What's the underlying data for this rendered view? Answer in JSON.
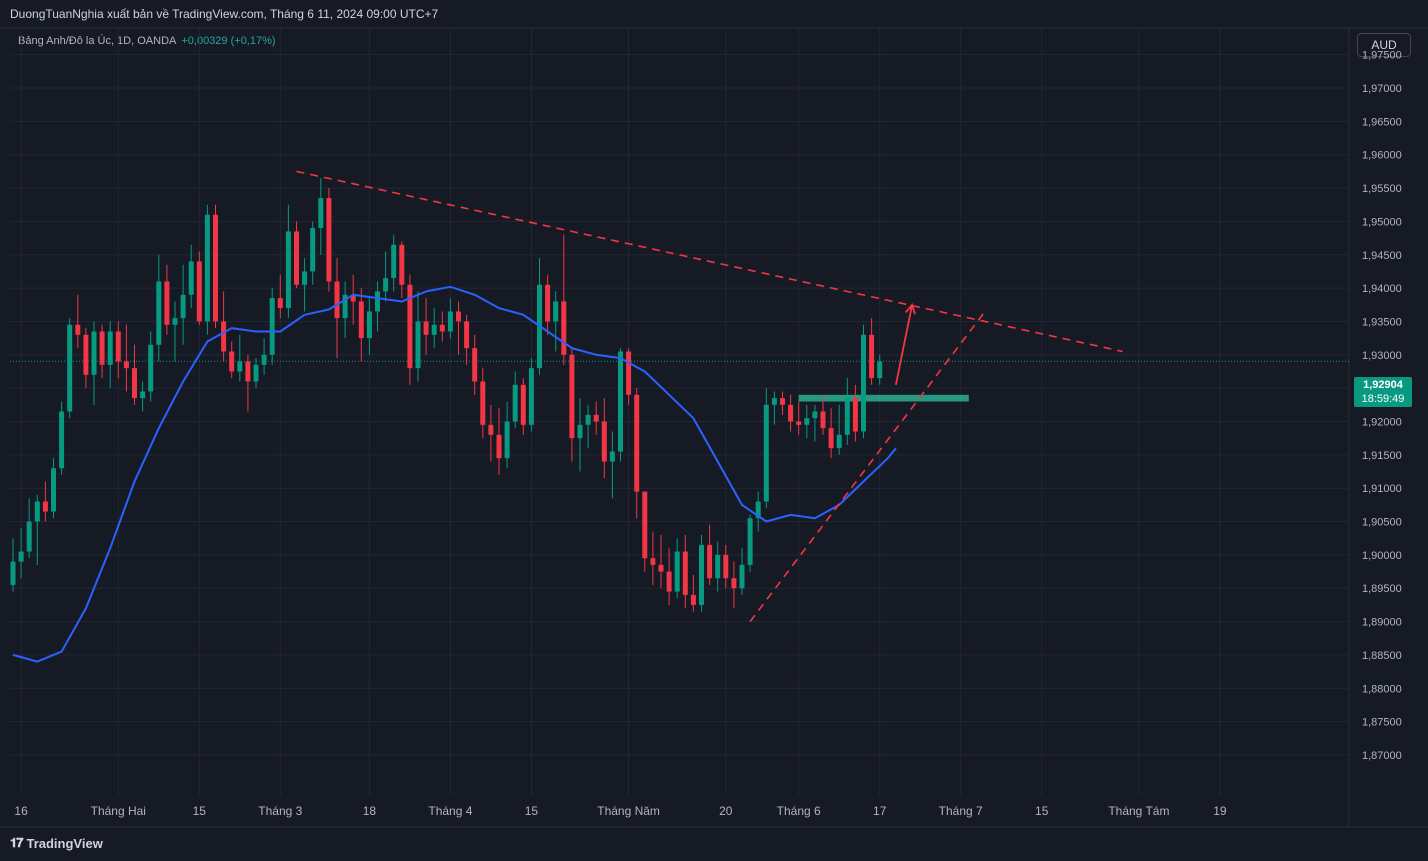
{
  "header": {
    "publisher_line": "DuongTuanNghia xuất bản về TradingView.com, Tháng 6 11, 2024 09:00 UTC+7",
    "symbol_line": "Bảng Anh/Đô la Úc, 1D, OANDA",
    "change": "+0,00329 (+0,17%)"
  },
  "currency_button": "AUD",
  "price_tag": {
    "price": "1,92904",
    "countdown": "18:59:49"
  },
  "footer": {
    "brand": "TradingView",
    "logo_icon": "tradingview-logo-icon"
  },
  "colors": {
    "up": "#089981",
    "down": "#f23645",
    "ma": "#2962ff",
    "trend": "#f23645",
    "zone": "#2ec4a0"
  },
  "chart_data": {
    "type": "candlestick",
    "ylim": [
      1.864,
      1.979
    ],
    "y_ticks": [
      "1,97500",
      "1,97000",
      "1,96500",
      "1,96000",
      "1,95500",
      "1,95000",
      "1,94500",
      "1,94000",
      "1,93500",
      "1,93000",
      "1,92500",
      "1,92000",
      "1,91500",
      "1,91000",
      "1,90500",
      "1,90000",
      "1,89500",
      "1,89000",
      "1,88500",
      "1,88000",
      "1,87500",
      "1,87000"
    ],
    "x_ticks": [
      {
        "label": "16",
        "bar": 1
      },
      {
        "label": "Tháng Hai",
        "bar": 13
      },
      {
        "label": "15",
        "bar": 23
      },
      {
        "label": "Tháng 3",
        "bar": 33
      },
      {
        "label": "18",
        "bar": 44
      },
      {
        "label": "Tháng 4",
        "bar": 54
      },
      {
        "label": "15",
        "bar": 64
      },
      {
        "label": "Tháng Năm",
        "bar": 76
      },
      {
        "label": "20",
        "bar": 88
      },
      {
        "label": "Tháng 6",
        "bar": 97
      },
      {
        "label": "17",
        "bar": 107
      },
      {
        "label": "Tháng 7",
        "bar": 117
      },
      {
        "label": "15",
        "bar": 127
      },
      {
        "label": "Tháng Tám",
        "bar": 139
      },
      {
        "label": "19",
        "bar": 149
      }
    ],
    "ohlc": [
      [
        1.8955,
        1.9025,
        1.8945,
        1.899
      ],
      [
        1.899,
        1.904,
        1.8965,
        1.9005
      ],
      [
        1.9005,
        1.9085,
        1.8995,
        1.905
      ],
      [
        1.905,
        1.909,
        1.8985,
        1.908
      ],
      [
        1.908,
        1.911,
        1.905,
        1.9065
      ],
      [
        1.9065,
        1.9145,
        1.9055,
        1.913
      ],
      [
        1.913,
        1.923,
        1.912,
        1.9215
      ],
      [
        1.9215,
        1.9355,
        1.9205,
        1.9345
      ],
      [
        1.9345,
        1.939,
        1.931,
        1.933
      ],
      [
        1.933,
        1.934,
        1.925,
        1.927
      ],
      [
        1.927,
        1.935,
        1.9225,
        1.9335
      ],
      [
        1.9335,
        1.9345,
        1.9265,
        1.9285
      ],
      [
        1.9285,
        1.935,
        1.925,
        1.9335
      ],
      [
        1.9335,
        1.935,
        1.9265,
        1.929
      ],
      [
        1.929,
        1.9345,
        1.9245,
        1.928
      ],
      [
        1.928,
        1.9315,
        1.9225,
        1.9235
      ],
      [
        1.9235,
        1.926,
        1.9215,
        1.9245
      ],
      [
        1.9245,
        1.9335,
        1.923,
        1.9315
      ],
      [
        1.9315,
        1.945,
        1.929,
        1.941
      ],
      [
        1.941,
        1.9435,
        1.933,
        1.9345
      ],
      [
        1.9345,
        1.938,
        1.929,
        1.9355
      ],
      [
        1.9355,
        1.9435,
        1.9315,
        1.939
      ],
      [
        1.939,
        1.9465,
        1.937,
        1.944
      ],
      [
        1.944,
        1.9455,
        1.9345,
        1.935
      ],
      [
        1.935,
        1.9525,
        1.933,
        1.951
      ],
      [
        1.951,
        1.9525,
        1.934,
        1.935
      ],
      [
        1.935,
        1.9395,
        1.929,
        1.9305
      ],
      [
        1.9305,
        1.932,
        1.9265,
        1.9275
      ],
      [
        1.9275,
        1.933,
        1.926,
        1.929
      ],
      [
        1.929,
        1.93,
        1.9215,
        1.926
      ],
      [
        1.926,
        1.9295,
        1.925,
        1.9285
      ],
      [
        1.9285,
        1.9325,
        1.927,
        1.93
      ],
      [
        1.93,
        1.94,
        1.9285,
        1.9385
      ],
      [
        1.9385,
        1.942,
        1.9355,
        1.937
      ],
      [
        1.937,
        1.9525,
        1.9355,
        1.9485
      ],
      [
        1.9485,
        1.95,
        1.94,
        1.9405
      ],
      [
        1.9405,
        1.9445,
        1.9365,
        1.9425
      ],
      [
        1.9425,
        1.95,
        1.9405,
        1.949
      ],
      [
        1.949,
        1.9565,
        1.945,
        1.9535
      ],
      [
        1.9535,
        1.955,
        1.9395,
        1.941
      ],
      [
        1.941,
        1.9445,
        1.9295,
        1.9355
      ],
      [
        1.9355,
        1.941,
        1.9325,
        1.939
      ],
      [
        1.939,
        1.942,
        1.9345,
        1.938
      ],
      [
        1.938,
        1.94,
        1.929,
        1.9325
      ],
      [
        1.9325,
        1.9385,
        1.93,
        1.9365
      ],
      [
        1.9365,
        1.941,
        1.9335,
        1.9395
      ],
      [
        1.9395,
        1.9455,
        1.938,
        1.9415
      ],
      [
        1.9415,
        1.948,
        1.9395,
        1.9465
      ],
      [
        1.9465,
        1.947,
        1.9385,
        1.9405
      ],
      [
        1.9405,
        1.942,
        1.9255,
        1.928
      ],
      [
        1.928,
        1.9395,
        1.926,
        1.935
      ],
      [
        1.935,
        1.9385,
        1.93,
        1.933
      ],
      [
        1.933,
        1.937,
        1.931,
        1.9345
      ],
      [
        1.9345,
        1.9365,
        1.932,
        1.9335
      ],
      [
        1.9335,
        1.9385,
        1.9325,
        1.9365
      ],
      [
        1.9365,
        1.938,
        1.93,
        1.935
      ],
      [
        1.935,
        1.936,
        1.9285,
        1.931
      ],
      [
        1.931,
        1.933,
        1.924,
        1.926
      ],
      [
        1.926,
        1.928,
        1.9175,
        1.9195
      ],
      [
        1.9195,
        1.9225,
        1.914,
        1.918
      ],
      [
        1.918,
        1.922,
        1.912,
        1.9145
      ],
      [
        1.9145,
        1.923,
        1.913,
        1.92
      ],
      [
        1.92,
        1.9275,
        1.919,
        1.9255
      ],
      [
        1.9255,
        1.9265,
        1.918,
        1.9195
      ],
      [
        1.9195,
        1.9295,
        1.9185,
        1.928
      ],
      [
        1.928,
        1.9445,
        1.927,
        1.9405
      ],
      [
        1.9405,
        1.942,
        1.933,
        1.935
      ],
      [
        1.935,
        1.9395,
        1.9305,
        1.938
      ],
      [
        1.938,
        1.948,
        1.9285,
        1.93
      ],
      [
        1.93,
        1.931,
        1.914,
        1.9175
      ],
      [
        1.9175,
        1.9235,
        1.9125,
        1.9195
      ],
      [
        1.9195,
        1.9225,
        1.916,
        1.921
      ],
      [
        1.921,
        1.923,
        1.918,
        1.92
      ],
      [
        1.92,
        1.9235,
        1.9115,
        1.914
      ],
      [
        1.914,
        1.9185,
        1.9085,
        1.9155
      ],
      [
        1.9155,
        1.931,
        1.914,
        1.9305
      ],
      [
        1.9305,
        1.931,
        1.9225,
        1.924
      ],
      [
        1.924,
        1.925,
        1.9055,
        1.9095
      ],
      [
        1.9095,
        1.9095,
        1.8975,
        1.8995
      ],
      [
        1.8995,
        1.9035,
        1.8955,
        1.8985
      ],
      [
        1.8985,
        1.903,
        1.895,
        1.8975
      ],
      [
        1.8975,
        1.901,
        1.8925,
        1.8945
      ],
      [
        1.8945,
        1.9025,
        1.8935,
        1.9005
      ],
      [
        1.9005,
        1.903,
        1.892,
        1.894
      ],
      [
        1.894,
        1.897,
        1.8915,
        1.8925
      ],
      [
        1.8925,
        1.903,
        1.8915,
        1.9015
      ],
      [
        1.9015,
        1.9045,
        1.8955,
        1.8965
      ],
      [
        1.8965,
        1.902,
        1.8945,
        1.9
      ],
      [
        1.9,
        1.9015,
        1.895,
        1.8965
      ],
      [
        1.8965,
        1.899,
        1.892,
        1.895
      ],
      [
        1.895,
        1.901,
        1.894,
        1.8985
      ],
      [
        1.8985,
        1.906,
        1.8975,
        1.9055
      ],
      [
        1.9055,
        1.9095,
        1.9035,
        1.908
      ],
      [
        1.908,
        1.925,
        1.907,
        1.9225
      ],
      [
        1.9225,
        1.9245,
        1.9195,
        1.9235
      ],
      [
        1.9235,
        1.9245,
        1.921,
        1.9225
      ],
      [
        1.9225,
        1.924,
        1.9185,
        1.92
      ],
      [
        1.92,
        1.923,
        1.918,
        1.9195
      ],
      [
        1.9195,
        1.9225,
        1.9175,
        1.9205
      ],
      [
        1.9205,
        1.9225,
        1.917,
        1.9215
      ],
      [
        1.9215,
        1.924,
        1.918,
        1.919
      ],
      [
        1.919,
        1.922,
        1.9145,
        1.916
      ],
      [
        1.916,
        1.9225,
        1.915,
        1.918
      ],
      [
        1.918,
        1.9265,
        1.9165,
        1.9235
      ],
      [
        1.9235,
        1.9255,
        1.917,
        1.9185
      ],
      [
        1.9185,
        1.9345,
        1.9175,
        1.933
      ],
      [
        1.933,
        1.9355,
        1.9255,
        1.9265
      ],
      [
        1.9265,
        1.93,
        1.9255,
        1.929
      ]
    ],
    "ma_line": [
      [
        0,
        1.885
      ],
      [
        3,
        1.884
      ],
      [
        6,
        1.8855
      ],
      [
        9,
        1.892
      ],
      [
        12,
        1.901
      ],
      [
        15,
        1.911
      ],
      [
        18,
        1.919
      ],
      [
        21,
        1.926
      ],
      [
        24,
        1.932
      ],
      [
        27,
        1.934
      ],
      [
        30,
        1.9335
      ],
      [
        33,
        1.9335
      ],
      [
        36,
        1.936
      ],
      [
        39,
        1.9368
      ],
      [
        42,
        1.939
      ],
      [
        45,
        1.9385
      ],
      [
        48,
        1.938
      ],
      [
        51,
        1.9395
      ],
      [
        54,
        1.9402
      ],
      [
        57,
        1.939
      ],
      [
        60,
        1.937
      ],
      [
        63,
        1.936
      ],
      [
        66,
        1.9335
      ],
      [
        69,
        1.931
      ],
      [
        72,
        1.93
      ],
      [
        75,
        1.9295
      ],
      [
        78,
        1.9275
      ],
      [
        81,
        1.924
      ],
      [
        84,
        1.9205
      ],
      [
        87,
        1.914
      ],
      [
        90,
        1.9075
      ],
      [
        93,
        1.905
      ],
      [
        96,
        1.906
      ],
      [
        99,
        1.9055
      ],
      [
        102,
        1.9075
      ],
      [
        105,
        1.911
      ],
      [
        108,
        1.9145
      ],
      [
        109,
        1.916
      ]
    ],
    "trendlines": [
      {
        "style": "dashed",
        "from": [
          35,
          1.9575
        ],
        "to": [
          137,
          1.9305
        ]
      },
      {
        "style": "dashed",
        "from": [
          91,
          1.89
        ],
        "to": [
          120,
          1.9365
        ]
      }
    ],
    "zone": {
      "from_bar": 97,
      "to_bar": 118,
      "y1": 1.923,
      "y2": 1.924
    },
    "arrow": {
      "from": [
        109,
        1.9255
      ],
      "to": [
        111,
        1.9375
      ]
    },
    "last_price": 1.92904
  }
}
